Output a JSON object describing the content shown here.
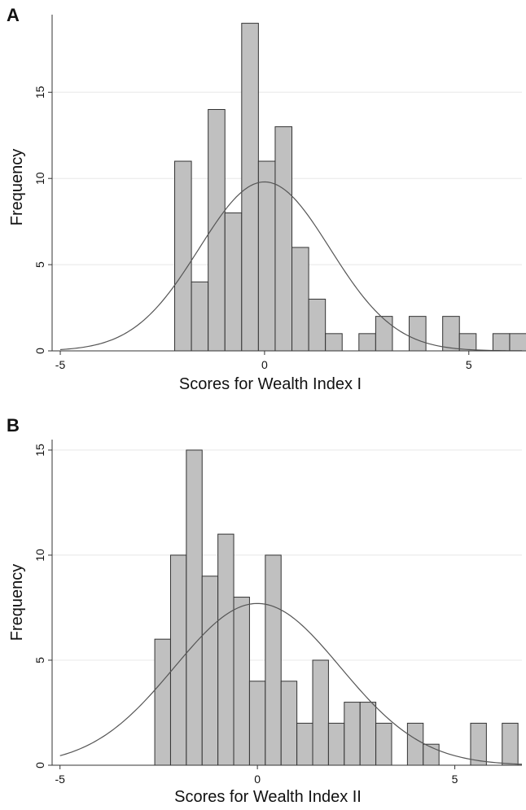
{
  "chart_data": [
    {
      "panel": "A",
      "type": "bar",
      "xlabel": "Scores for Wealth Index I",
      "ylabel": "Frequency",
      "grid": true,
      "xlim": [
        -5.2,
        6.3
      ],
      "ylim": [
        0,
        19.5
      ],
      "x_ticks": [
        -5,
        0,
        5
      ],
      "y_ticks": [
        0,
        5,
        10,
        15
      ],
      "bar_width": 0.41,
      "bins": [
        {
          "x": -2.2,
          "value": 11
        },
        {
          "x": -1.79,
          "value": 4
        },
        {
          "x": -1.38,
          "value": 14
        },
        {
          "x": -0.97,
          "value": 8
        },
        {
          "x": -0.56,
          "value": 19
        },
        {
          "x": -0.15,
          "value": 11
        },
        {
          "x": 0.26,
          "value": 13
        },
        {
          "x": 0.67,
          "value": 6
        },
        {
          "x": 1.08,
          "value": 3
        },
        {
          "x": 1.49,
          "value": 1
        },
        {
          "x": 1.9,
          "value": 0
        },
        {
          "x": 2.31,
          "value": 1
        },
        {
          "x": 2.72,
          "value": 2
        },
        {
          "x": 3.13,
          "value": 0
        },
        {
          "x": 3.54,
          "value": 2
        },
        {
          "x": 3.95,
          "value": 0
        },
        {
          "x": 4.36,
          "value": 2
        },
        {
          "x": 4.77,
          "value": 1
        },
        {
          "x": 5.18,
          "value": 0
        },
        {
          "x": 5.59,
          "value": 1
        },
        {
          "x": 6.0,
          "value": 1
        }
      ],
      "normal_curve": {
        "mean": 0,
        "peak": 9.8,
        "sd": 1.6,
        "x_range": [
          -5,
          6.3
        ]
      }
    },
    {
      "panel": "B",
      "type": "bar",
      "xlabel": "Scores for Wealth Index II",
      "ylabel": "Frequency",
      "grid": true,
      "xlim": [
        -5.2,
        6.7
      ],
      "ylim": [
        0,
        15.5
      ],
      "x_ticks": [
        -5,
        0,
        5
      ],
      "y_ticks": [
        0,
        5,
        10,
        15
      ],
      "bar_width": 0.4,
      "bins": [
        {
          "x": -2.6,
          "value": 6
        },
        {
          "x": -2.2,
          "value": 10
        },
        {
          "x": -1.8,
          "value": 15
        },
        {
          "x": -1.4,
          "value": 9
        },
        {
          "x": -1.0,
          "value": 11
        },
        {
          "x": -0.6,
          "value": 8
        },
        {
          "x": -0.2,
          "value": 4
        },
        {
          "x": 0.2,
          "value": 10
        },
        {
          "x": 0.6,
          "value": 4
        },
        {
          "x": 1.0,
          "value": 2
        },
        {
          "x": 1.4,
          "value": 5
        },
        {
          "x": 1.8,
          "value": 2
        },
        {
          "x": 2.2,
          "value": 3
        },
        {
          "x": 2.6,
          "value": 3
        },
        {
          "x": 3.0,
          "value": 2
        },
        {
          "x": 3.4,
          "value": 0
        },
        {
          "x": 3.8,
          "value": 2
        },
        {
          "x": 4.2,
          "value": 1
        },
        {
          "x": 4.6,
          "value": 0
        },
        {
          "x": 5.0,
          "value": 0
        },
        {
          "x": 5.4,
          "value": 2
        },
        {
          "x": 5.8,
          "value": 0
        },
        {
          "x": 6.2,
          "value": 2
        }
      ],
      "normal_curve": {
        "mean": 0,
        "peak": 7.7,
        "sd": 2.1,
        "x_range": [
          -5,
          6.7
        ]
      }
    }
  ],
  "panels": {
    "a": {
      "label": "A",
      "xlabel": "Scores for Wealth Index I",
      "ylabel": "Frequency"
    },
    "b": {
      "label": "B",
      "xlabel": "Scores for Wealth Index II",
      "ylabel": "Frequency"
    }
  }
}
